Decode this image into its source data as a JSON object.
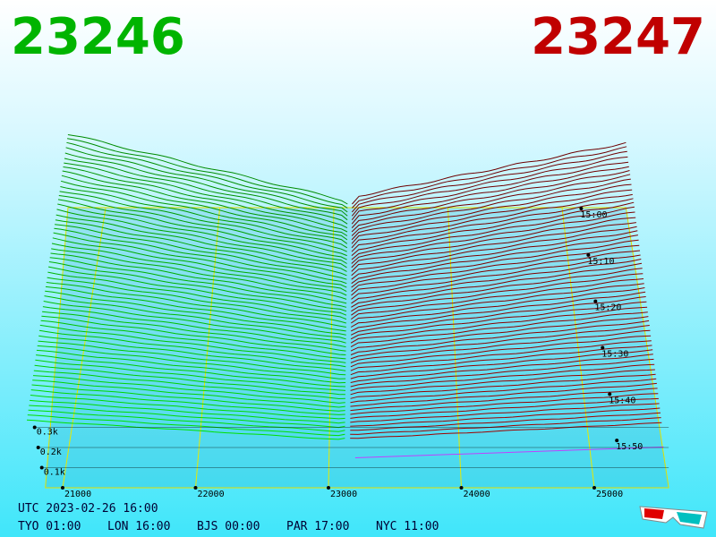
{
  "header": {
    "bid": "23246",
    "ask": "23247"
  },
  "axes": {
    "price_ticks": [
      21000,
      22000,
      23000,
      24000,
      25000
    ],
    "depth_ticks": [
      {
        "value": 100,
        "label": "0.1k"
      },
      {
        "value": 200,
        "label": "0.2k"
      },
      {
        "value": 300,
        "label": "0.3k"
      }
    ],
    "time_ticks": [
      "15:00",
      "15:10",
      "15:20",
      "15:30",
      "15:40",
      "15:50"
    ]
  },
  "footer": {
    "utc": "UTC 2023-02-26 16:00",
    "zones": [
      "TYO 01:00",
      "LON 16:00",
      "BJS 00:00",
      "PAR 17:00",
      "NYC 11:00"
    ]
  }
}
